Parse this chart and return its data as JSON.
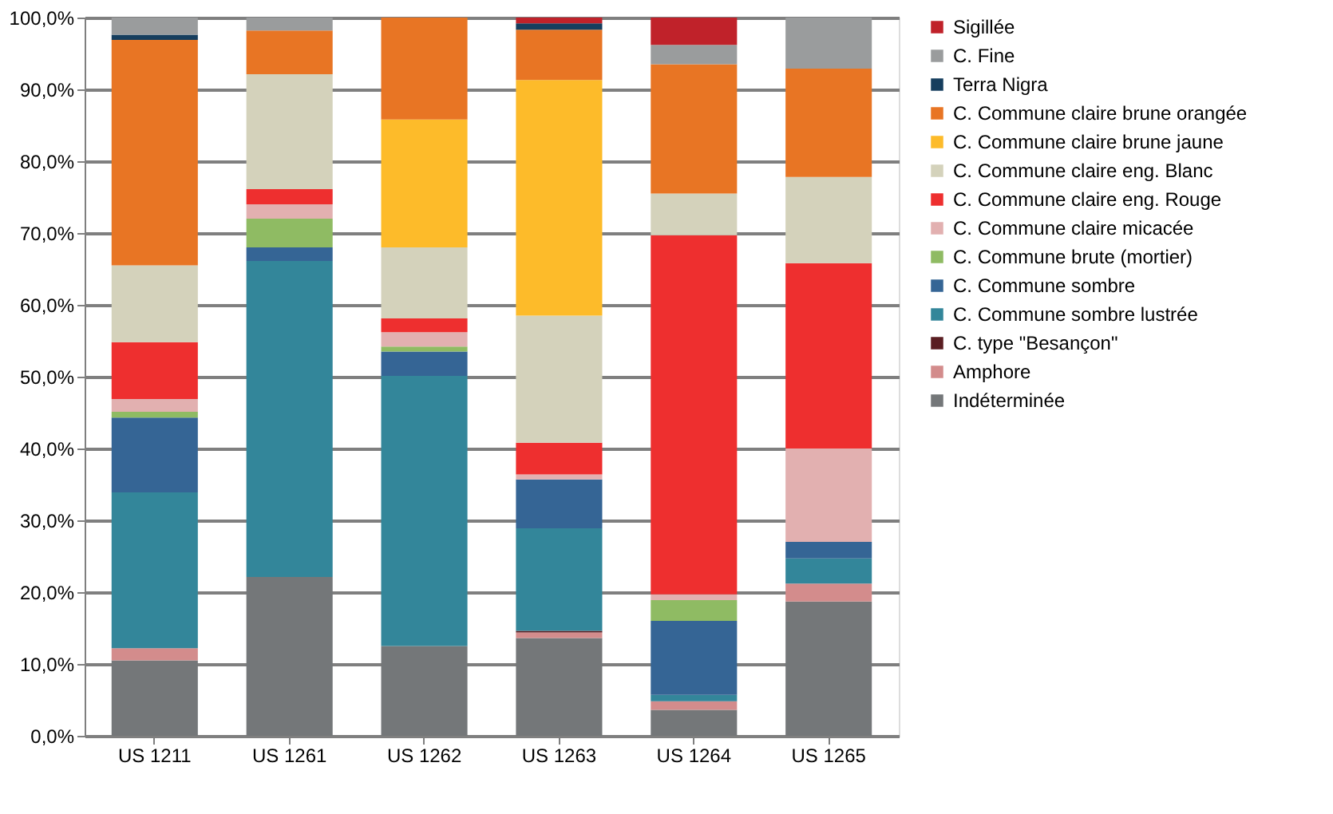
{
  "chart_data": {
    "type": "bar",
    "stacked": true,
    "legend": "right",
    "grid": "y",
    "categories": [
      "US 1211",
      "US 1261",
      "US 1262",
      "US 1263",
      "US 1264",
      "US 1265"
    ],
    "ylim": [
      0,
      100
    ],
    "yticks": [
      {
        "value": 0,
        "label": "0,0%"
      },
      {
        "value": 10,
        "label": "10,0%"
      },
      {
        "value": 20,
        "label": "20,0%"
      },
      {
        "value": 30,
        "label": "30,0%"
      },
      {
        "value": 40,
        "label": "40,0%"
      },
      {
        "value": 50,
        "label": "50,0%"
      },
      {
        "value": 60,
        "label": "60,0%"
      },
      {
        "value": 70,
        "label": "70,0%"
      },
      {
        "value": 80,
        "label": "80,0%"
      },
      {
        "value": 90,
        "label": "90,0%"
      },
      {
        "value": 100,
        "label": "100,0%"
      }
    ],
    "series": [
      {
        "name": "Indéterminée",
        "color": "#747779",
        "values": [
          10.5,
          22.1,
          12.5,
          13.6,
          3.6,
          18.7
        ]
      },
      {
        "name": "Amphore",
        "color": "#d38c8c",
        "values": [
          1.7,
          0,
          0,
          0.8,
          1.2,
          2.5
        ]
      },
      {
        "name": "C. type \"Besançon\"",
        "color": "#5a1e22",
        "values": [
          0,
          0,
          0,
          0.2,
          0,
          0
        ]
      },
      {
        "name": "C. Commune sombre lustrée",
        "color": "#33869a",
        "values": [
          21.7,
          44.0,
          37.6,
          14.3,
          0.9,
          3.5
        ]
      },
      {
        "name": "C. Commune sombre",
        "color": "#356595",
        "values": [
          10.4,
          1.9,
          3.4,
          6.8,
          10.3,
          2.3
        ]
      },
      {
        "name": "C. Commune brute (mortier)",
        "color": "#8fbb63",
        "values": [
          0.8,
          4.0,
          0.7,
          0,
          2.9,
          0
        ]
      },
      {
        "name": "C. Commune claire micacée",
        "color": "#e2b0b0",
        "values": [
          1.8,
          2.0,
          2.0,
          0.7,
          0.8,
          13.0
        ]
      },
      {
        "name": "C. Commune claire eng. Rouge",
        "color": "#ee2f2f",
        "values": [
          7.9,
          2.1,
          1.9,
          4.4,
          50.0,
          25.8
        ]
      },
      {
        "name": "C. Commune claire eng. Blanc",
        "color": "#d4d2bb",
        "values": [
          10.7,
          16.0,
          9.9,
          17.7,
          5.8,
          12.0
        ]
      },
      {
        "name": "C. Commune claire brune jaune",
        "color": "#fdbb2a",
        "values": [
          0,
          0,
          17.8,
          32.8,
          0,
          0
        ]
      },
      {
        "name": "C. Commune claire brune orangée",
        "color": "#e87524",
        "values": [
          31.4,
          6.1,
          14.2,
          7.0,
          18.0,
          15.1
        ]
      },
      {
        "name": "Terra Nigra",
        "color": "#163e5e",
        "values": [
          0.7,
          0,
          0,
          0.9,
          0,
          0
        ]
      },
      {
        "name": "C. Fine",
        "color": "#9a9c9d",
        "values": [
          2.4,
          1.8,
          0,
          0,
          2.7,
          7.1
        ]
      },
      {
        "name": "Sigillée",
        "color": "#c0222a",
        "values": [
          0,
          0,
          0,
          0.8,
          3.8,
          0
        ]
      }
    ]
  }
}
